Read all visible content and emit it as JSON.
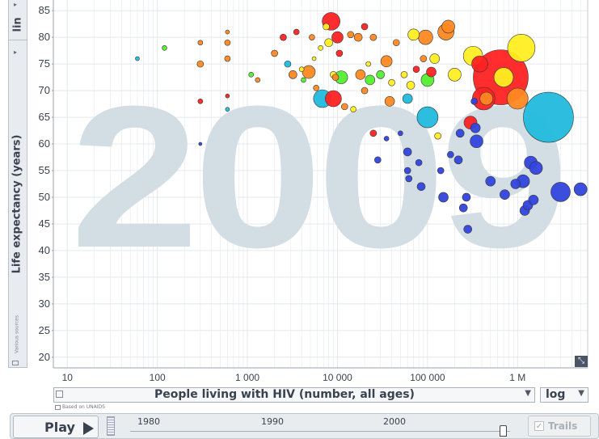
{
  "colors": {
    "year_watermark": "#d3dde4",
    "grid": "#e4e8ec",
    "axis_text": "#3a4250",
    "region_east_asia_pacific": "#ff2222",
    "region_south_asia": "#22bbdd",
    "region_sub_saharan_africa": "#3344dd",
    "region_americas": "#ffee22",
    "region_europe_central_asia": "#ff8822",
    "region_middle_east_north_africa": "#55ee33"
  },
  "y_axis": {
    "scale_label": "lin",
    "label": "Life expectancy (years)",
    "sources_label": "Various sources"
  },
  "x_axis": {
    "label": "People living with HIV (number, all ages)",
    "scale_label": "log",
    "source_note": "Based on UNAIDS",
    "tick_labels": [
      "10",
      "100",
      "1 000",
      "10 000",
      "100 000",
      "1 M"
    ]
  },
  "controls": {
    "play_label": "Play",
    "timeline_years": [
      "1980",
      "1990",
      "2000"
    ],
    "trails_label": "Trails",
    "trails_checked": true
  },
  "chart_data": {
    "type": "scatter",
    "subtype": "bubble",
    "year": "2009",
    "xlabel": "People living with HIV (number, all ages)",
    "ylabel": "Life expectancy (years)",
    "x_scale": "log",
    "y_scale": "linear",
    "xlim": [
      7,
      6000000
    ],
    "ylim": [
      18,
      87
    ],
    "y_ticks": [
      20,
      25,
      30,
      35,
      40,
      45,
      50,
      55,
      60,
      65,
      70,
      75,
      80,
      85
    ],
    "x_ticks": [
      10,
      100,
      1000,
      10000,
      100000,
      1000000
    ],
    "x_tick_labels": [
      "10",
      "100",
      "1 000",
      "10 000",
      "100 000",
      "1 M"
    ],
    "grid": true,
    "bubble_size": "population",
    "points": [
      {
        "x": 60,
        "y": 76,
        "c": "#22bbdd",
        "r": 2.5
      },
      {
        "x": 120,
        "y": 78,
        "c": "#55ee33",
        "r": 3
      },
      {
        "x": 300,
        "y": 79,
        "c": "#ff8822",
        "r": 3
      },
      {
        "x": 300,
        "y": 75,
        "c": "#ff8822",
        "r": 4
      },
      {
        "x": 300,
        "y": 68,
        "c": "#ff2222",
        "r": 3
      },
      {
        "x": 300,
        "y": 60,
        "c": "#3344dd",
        "r": 2
      },
      {
        "x": 600,
        "y": 81,
        "c": "#ff8822",
        "r": 2.5
      },
      {
        "x": 600,
        "y": 79,
        "c": "#ff8822",
        "r": 3.5
      },
      {
        "x": 600,
        "y": 76,
        "c": "#ff8822",
        "r": 3.5
      },
      {
        "x": 600,
        "y": 69,
        "c": "#ff2222",
        "r": 2.5
      },
      {
        "x": 600,
        "y": 66.5,
        "c": "#22bbdd",
        "r": 2.5
      },
      {
        "x": 1100,
        "y": 73,
        "c": "#55ee33",
        "r": 3
      },
      {
        "x": 1300,
        "y": 72,
        "c": "#ff8822",
        "r": 3
      },
      {
        "x": 2000,
        "y": 77,
        "c": "#ff8822",
        "r": 4
      },
      {
        "x": 2500,
        "y": 80,
        "c": "#ff2222",
        "r": 4
      },
      {
        "x": 2800,
        "y": 75,
        "c": "#22bbdd",
        "r": 4
      },
      {
        "x": 3200,
        "y": 73,
        "c": "#ff8822",
        "r": 5
      },
      {
        "x": 3500,
        "y": 81,
        "c": "#ff2222",
        "r": 3.5
      },
      {
        "x": 4000,
        "y": 74,
        "c": "#ffee22",
        "r": 3
      },
      {
        "x": 4200,
        "y": 72,
        "c": "#55ee33",
        "r": 3
      },
      {
        "x": 4800,
        "y": 73.5,
        "c": "#ff8822",
        "r": 8
      },
      {
        "x": 5200,
        "y": 80,
        "c": "#ff8822",
        "r": 3.5
      },
      {
        "x": 5500,
        "y": 76,
        "c": "#ffee22",
        "r": 2.5
      },
      {
        "x": 5800,
        "y": 70.5,
        "c": "#ff8822",
        "r": 3.5
      },
      {
        "x": 6500,
        "y": 78,
        "c": "#ffee22",
        "r": 3
      },
      {
        "x": 6800,
        "y": 68.5,
        "c": "#22bbdd",
        "r": 11
      },
      {
        "x": 7500,
        "y": 82,
        "c": "#ffee22",
        "r": 4
      },
      {
        "x": 8000,
        "y": 79,
        "c": "#ffee22",
        "r": 5
      },
      {
        "x": 8500,
        "y": 83,
        "c": "#ff2222",
        "r": 11
      },
      {
        "x": 9000,
        "y": 68.5,
        "c": "#ff2222",
        "r": 10
      },
      {
        "x": 9000,
        "y": 73,
        "c": "#ffee22",
        "r": 4
      },
      {
        "x": 9500,
        "y": 72.5,
        "c": "#ff8822",
        "r": 4
      },
      {
        "x": 10000,
        "y": 80,
        "c": "#ff2222",
        "r": 7
      },
      {
        "x": 10500,
        "y": 77,
        "c": "#ff2222",
        "r": 4
      },
      {
        "x": 11000,
        "y": 72.5,
        "c": "#55ee33",
        "r": 8
      },
      {
        "x": 12000,
        "y": 67,
        "c": "#ff8822",
        "r": 4
      },
      {
        "x": 14000,
        "y": 80.5,
        "c": "#ff8822",
        "r": 4
      },
      {
        "x": 15000,
        "y": 66.5,
        "c": "#ffee22",
        "r": 3.5
      },
      {
        "x": 17000,
        "y": 80,
        "c": "#ff8822",
        "r": 5
      },
      {
        "x": 18000,
        "y": 73,
        "c": "#ff8822",
        "r": 6
      },
      {
        "x": 20000,
        "y": 82,
        "c": "#ff2222",
        "r": 4
      },
      {
        "x": 20000,
        "y": 70,
        "c": "#ff8822",
        "r": 4
      },
      {
        "x": 22000,
        "y": 75,
        "c": "#ffee22",
        "r": 3
      },
      {
        "x": 23000,
        "y": 72,
        "c": "#55ee33",
        "r": 6
      },
      {
        "x": 25000,
        "y": 80,
        "c": "#ff8822",
        "r": 4
      },
      {
        "x": 25000,
        "y": 62,
        "c": "#ff2222",
        "r": 4
      },
      {
        "x": 28000,
        "y": 57,
        "c": "#3344dd",
        "r": 4
      },
      {
        "x": 30000,
        "y": 73,
        "c": "#55ee33",
        "r": 5
      },
      {
        "x": 35000,
        "y": 61,
        "c": "#3344dd",
        "r": 3
      },
      {
        "x": 35000,
        "y": 75.5,
        "c": "#ff8822",
        "r": 7
      },
      {
        "x": 38000,
        "y": 68,
        "c": "#ff8822",
        "r": 6
      },
      {
        "x": 40000,
        "y": 71.5,
        "c": "#ffee22",
        "r": 4
      },
      {
        "x": 45000,
        "y": 79,
        "c": "#ff8822",
        "r": 4
      },
      {
        "x": 50000,
        "y": 62,
        "c": "#3344dd",
        "r": 3
      },
      {
        "x": 55000,
        "y": 73,
        "c": "#ffee22",
        "r": 4
      },
      {
        "x": 60000,
        "y": 68.5,
        "c": "#22bbdd",
        "r": 6
      },
      {
        "x": 60000,
        "y": 58.5,
        "c": "#3344dd",
        "r": 5
      },
      {
        "x": 60000,
        "y": 55,
        "c": "#3344dd",
        "r": 4
      },
      {
        "x": 62000,
        "y": 53.5,
        "c": "#3344dd",
        "r": 4
      },
      {
        "x": 65000,
        "y": 71,
        "c": "#ffee22",
        "r": 5
      },
      {
        "x": 70000,
        "y": 80.5,
        "c": "#ffee22",
        "r": 7
      },
      {
        "x": 75000,
        "y": 74,
        "c": "#ff2222",
        "r": 4
      },
      {
        "x": 80000,
        "y": 56.5,
        "c": "#3344dd",
        "r": 4
      },
      {
        "x": 85000,
        "y": 52,
        "c": "#3344dd",
        "r": 5
      },
      {
        "x": 90000,
        "y": 76,
        "c": "#ff8822",
        "r": 4
      },
      {
        "x": 95000,
        "y": 80,
        "c": "#ff8822",
        "r": 9
      },
      {
        "x": 100000,
        "y": 72,
        "c": "#55ee33",
        "r": 8
      },
      {
        "x": 100000,
        "y": 65,
        "c": "#22bbdd",
        "r": 13
      },
      {
        "x": 110000,
        "y": 73.5,
        "c": "#ff2222",
        "r": 6
      },
      {
        "x": 120000,
        "y": 76,
        "c": "#ffee22",
        "r": 6
      },
      {
        "x": 130000,
        "y": 61.5,
        "c": "#ffee22",
        "r": 4
      },
      {
        "x": 140000,
        "y": 55,
        "c": "#3344dd",
        "r": 4
      },
      {
        "x": 150000,
        "y": 50,
        "c": "#3344dd",
        "r": 6
      },
      {
        "x": 160000,
        "y": 81,
        "c": "#ff8822",
        "r": 10
      },
      {
        "x": 170000,
        "y": 82,
        "c": "#ff8822",
        "r": 8
      },
      {
        "x": 180000,
        "y": 58,
        "c": "#3344dd",
        "r": 4
      },
      {
        "x": 200000,
        "y": 73,
        "c": "#ffee22",
        "r": 8
      },
      {
        "x": 220000,
        "y": 57,
        "c": "#3344dd",
        "r": 5
      },
      {
        "x": 230000,
        "y": 62,
        "c": "#3344dd",
        "r": 5
      },
      {
        "x": 250000,
        "y": 48,
        "c": "#3344dd",
        "r": 5
      },
      {
        "x": 270000,
        "y": 50,
        "c": "#3344dd",
        "r": 5
      },
      {
        "x": 280000,
        "y": 44,
        "c": "#3344dd",
        "r": 5
      },
      {
        "x": 300000,
        "y": 64,
        "c": "#ff2222",
        "r": 8
      },
      {
        "x": 320000,
        "y": 76.5,
        "c": "#ffee22",
        "r": 12
      },
      {
        "x": 330000,
        "y": 68,
        "c": "#3344dd",
        "r": 4
      },
      {
        "x": 340000,
        "y": 63,
        "c": "#3344dd",
        "r": 6
      },
      {
        "x": 350000,
        "y": 60.5,
        "c": "#3344dd",
        "r": 8
      },
      {
        "x": 380000,
        "y": 75,
        "c": "#ff2222",
        "r": 10
      },
      {
        "x": 420000,
        "y": 68.5,
        "c": "#ff2222",
        "r": 14
      },
      {
        "x": 450000,
        "y": 68.5,
        "c": "#ff8822",
        "r": 8
      },
      {
        "x": 500000,
        "y": 53,
        "c": "#3344dd",
        "r": 6
      },
      {
        "x": 650000,
        "y": 72.5,
        "c": "#ff2222",
        "r": 34
      },
      {
        "x": 700000,
        "y": 72.5,
        "c": "#ffee22",
        "r": 12
      },
      {
        "x": 720000,
        "y": 50.5,
        "c": "#3344dd",
        "r": 6
      },
      {
        "x": 950000,
        "y": 52.5,
        "c": "#3344dd",
        "r": 6
      },
      {
        "x": 1000000,
        "y": 68.5,
        "c": "#ff8822",
        "r": 13
      },
      {
        "x": 1100000,
        "y": 78,
        "c": "#ffee22",
        "r": 17
      },
      {
        "x": 1150000,
        "y": 53,
        "c": "#3344dd",
        "r": 8
      },
      {
        "x": 1200000,
        "y": 47.5,
        "c": "#3344dd",
        "r": 6
      },
      {
        "x": 1300000,
        "y": 48.5,
        "c": "#3344dd",
        "r": 6
      },
      {
        "x": 1400000,
        "y": 56.5,
        "c": "#3344dd",
        "r": 8
      },
      {
        "x": 1500000,
        "y": 49.5,
        "c": "#3344dd",
        "r": 6
      },
      {
        "x": 1600000,
        "y": 55.5,
        "c": "#3344dd",
        "r": 8
      },
      {
        "x": 2200000,
        "y": 65,
        "c": "#22bbdd",
        "r": 31
      },
      {
        "x": 3000000,
        "y": 51,
        "c": "#3344dd",
        "r": 12
      },
      {
        "x": 5000000,
        "y": 51.5,
        "c": "#3344dd",
        "r": 8
      }
    ]
  }
}
